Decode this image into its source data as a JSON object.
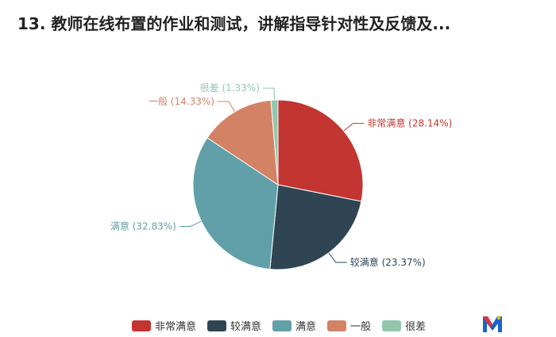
{
  "title": "13. 教师在线布置的作业和测试，讲解指导针对性及反馈及...",
  "chart_data": {
    "type": "pie",
    "title": "13. 教师在线布置的作业和测试，讲解指导针对性及反馈及...",
    "categories": [
      "非常满意",
      "较满意",
      "满意",
      "一般",
      "很差"
    ],
    "values": [
      28.14,
      23.37,
      32.83,
      14.33,
      1.33
    ],
    "labels": [
      "非常满意 (28.14%)",
      "较满意 (23.37%)",
      "满意 (32.83%)",
      "一般 (14.33%)",
      "很差 (1.33%)"
    ],
    "colors": [
      "#c23531",
      "#2f4554",
      "#61a0a8",
      "#d48265",
      "#91c7ae"
    ],
    "legend_position": "bottom"
  },
  "logo_icon": "brand-m-logo"
}
